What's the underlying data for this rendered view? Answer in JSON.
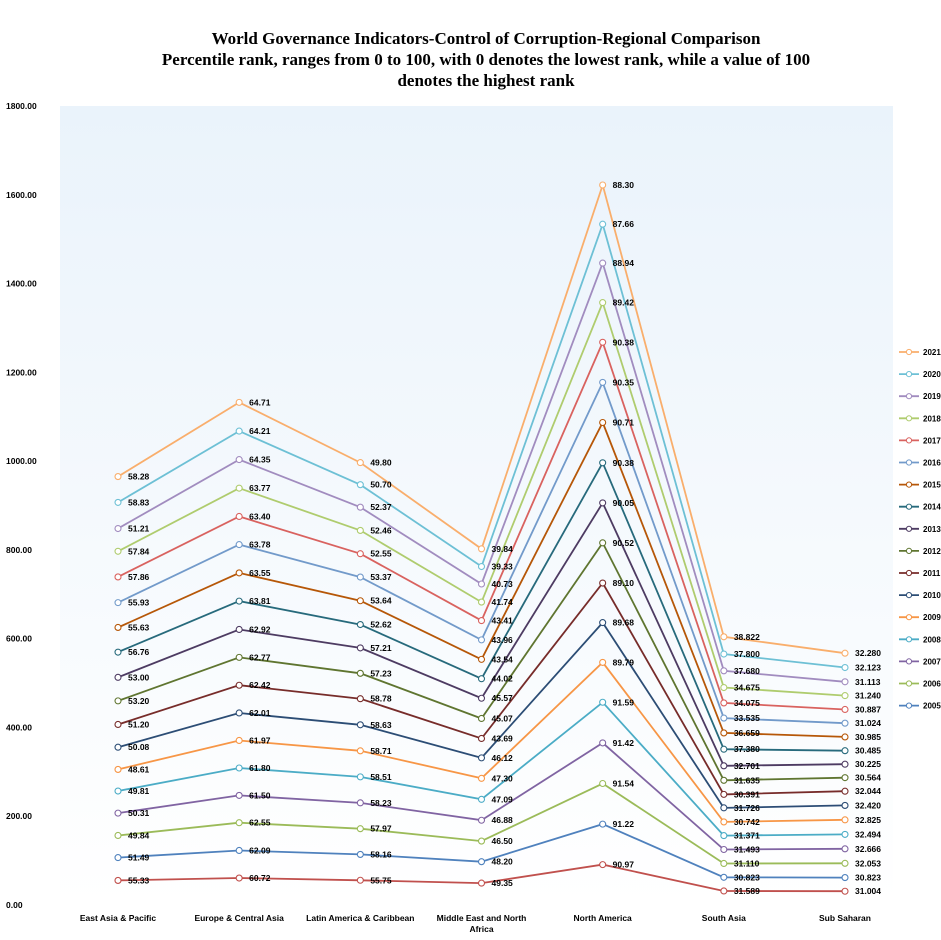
{
  "chart_data": {
    "type": "line",
    "title_lines": [
      "World Governance Indicators-Control of Corruption-Regional Comparison",
      "Percentile rank, ranges from 0 to 100, with 0 denotes the lowest rank, while a value of 100",
      "denotes the highest rank"
    ],
    "stacked": true,
    "categories": [
      "East Asia & Pacific",
      "Europe & Central Asia",
      "Latin America & Caribbean",
      "Middle East and North Africa",
      "North America",
      "South Asia",
      "Sub Saharan"
    ],
    "category_lines": [
      [
        "East Asia & Pacific"
      ],
      [
        "Europe & Central Asia"
      ],
      [
        "Latin America & Caribbean"
      ],
      [
        "Middle East and North",
        "Africa"
      ],
      [
        "North America"
      ],
      [
        "South Asia"
      ],
      [
        "Sub Saharan"
      ]
    ],
    "ylim": [
      0,
      1800
    ],
    "yticks": [
      "0.00",
      "200.00",
      "400.00",
      "600.00",
      "800.00",
      "1000.00",
      "1200.00",
      "1400.00",
      "1600.00",
      "1800.00"
    ],
    "legend_position": "right",
    "bottom_series": {
      "labels": [
        "55.33",
        "60.72",
        "55.75",
        "49.35",
        "90.97",
        "31.589",
        "31.004"
      ],
      "values": [
        55.33,
        60.72,
        55.75,
        49.35,
        90.97,
        31.589,
        31.004
      ],
      "color": "#C0504D"
    },
    "series": [
      {
        "name": "2005",
        "color": "#4F81BD",
        "labels": [
          "51.49",
          "62.09",
          "58.16",
          "48.20",
          "91.22",
          "30.823",
          "30.823"
        ],
        "values": [
          51.49,
          62.09,
          58.16,
          48.2,
          91.22,
          30.823,
          30.823
        ]
      },
      {
        "name": "2006",
        "color": "#9BBB59",
        "labels": [
          "49.84",
          "62.55",
          "57.97",
          "46.50",
          "91.54",
          "31.110",
          "32.053"
        ],
        "values": [
          49.84,
          62.55,
          57.97,
          46.5,
          91.54,
          31.11,
          32.053
        ]
      },
      {
        "name": "2007",
        "color": "#8064A2",
        "labels": [
          "50.31",
          "61.50",
          "58.23",
          "46.88",
          "91.42",
          "31.493",
          "32.666"
        ],
        "values": [
          50.31,
          61.5,
          58.23,
          46.88,
          91.42,
          31.493,
          32.666
        ]
      },
      {
        "name": "2008",
        "color": "#4BACC6",
        "labels": [
          "49.81",
          "61.80",
          "58.51",
          "47.09",
          "91.59",
          "31.371",
          "32.494"
        ],
        "values": [
          49.81,
          61.8,
          58.51,
          47.09,
          91.59,
          31.371,
          32.494
        ]
      },
      {
        "name": "2009",
        "color": "#F79646",
        "labels": [
          "48.61",
          "61.97",
          "58.71",
          "47.30",
          "89.79",
          "30.742",
          "32.825"
        ],
        "values": [
          48.61,
          61.97,
          58.71,
          47.3,
          89.79,
          30.742,
          32.825
        ]
      },
      {
        "name": "2010",
        "color": "#2C4D75",
        "labels": [
          "50.08",
          "62.01",
          "58.63",
          "46.12",
          "89.68",
          "31.726",
          "32.420"
        ],
        "values": [
          50.08,
          62.01,
          58.63,
          46.12,
          89.68,
          31.726,
          32.42
        ]
      },
      {
        "name": "2011",
        "color": "#772C2A",
        "labels": [
          "51.20",
          "62.42",
          "58.78",
          "43.69",
          "89.10",
          "30.391",
          "32.044"
        ],
        "values": [
          51.2,
          62.42,
          58.78,
          43.69,
          89.1,
          30.391,
          32.044
        ]
      },
      {
        "name": "2012",
        "color": "#5F7530",
        "labels": [
          "53.20",
          "62.77",
          "57.23",
          "45.07",
          "90.52",
          "31.635",
          "30.564"
        ],
        "values": [
          53.2,
          62.77,
          57.23,
          45.07,
          90.52,
          31.635,
          30.564
        ]
      },
      {
        "name": "2013",
        "color": "#4D3B62",
        "labels": [
          "53.00",
          "62.92",
          "57.21",
          "45.57",
          "90.05",
          "32.701",
          "30.225"
        ],
        "values": [
          53.0,
          62.92,
          57.21,
          45.57,
          90.05,
          32.701,
          30.225
        ]
      },
      {
        "name": "2014",
        "color": "#276A7C",
        "labels": [
          "56.76",
          "63.81",
          "52.62",
          "44.02",
          "90.38",
          "37.380",
          "30.485"
        ],
        "values": [
          56.76,
          63.81,
          52.62,
          44.02,
          90.38,
          37.38,
          30.485
        ]
      },
      {
        "name": "2015",
        "color": "#B65708",
        "labels": [
          "55.63",
          "63.55",
          "53.64",
          "43.54",
          "90.71",
          "36.659",
          "30.985"
        ],
        "values": [
          55.63,
          63.55,
          53.64,
          43.54,
          90.71,
          36.659,
          30.985
        ]
      },
      {
        "name": "2016",
        "color": "#729ACA",
        "labels": [
          "55.93",
          "63.78",
          "53.37",
          "43.96",
          "90.35",
          "33.535",
          "31.024"
        ],
        "values": [
          55.93,
          63.78,
          53.37,
          43.96,
          90.35,
          33.535,
          31.024
        ]
      },
      {
        "name": "2017",
        "color": "#D9625F",
        "labels": [
          "57.86",
          "63.40",
          "52.55",
          "43.41",
          "90.38",
          "34.075",
          "30.887"
        ],
        "values": [
          57.86,
          63.4,
          52.55,
          43.41,
          90.38,
          34.075,
          30.887
        ]
      },
      {
        "name": "2018",
        "color": "#AFCC6E",
        "labels": [
          "57.84",
          "63.77",
          "52.46",
          "41.74",
          "89.42",
          "34.675",
          "31.240"
        ],
        "values": [
          57.84,
          63.77,
          52.46,
          41.74,
          89.42,
          34.675,
          31.24
        ]
      },
      {
        "name": "2019",
        "color": "#A18CBF",
        "labels": [
          "51.21",
          "64.35",
          "52.37",
          "40.73",
          "88.94",
          "37.680",
          "31.113"
        ],
        "values": [
          51.21,
          64.35,
          52.37,
          40.73,
          88.94,
          37.68,
          31.113
        ]
      },
      {
        "name": "2020",
        "color": "#6DC0D5",
        "labels": [
          "58.83",
          "64.21",
          "50.70",
          "39.33",
          "87.66",
          "37.800",
          "32.123"
        ],
        "values": [
          58.83,
          64.21,
          50.7,
          39.33,
          87.66,
          37.8,
          32.123
        ]
      },
      {
        "name": "2021",
        "color": "#F9AE6C",
        "labels": [
          "58.28",
          "64.71",
          "49.80",
          "39.84",
          "88.30",
          "38.822",
          "32.280"
        ],
        "values": [
          58.28,
          64.71,
          49.8,
          39.84,
          88.3,
          38.822,
          32.28
        ]
      }
    ]
  }
}
